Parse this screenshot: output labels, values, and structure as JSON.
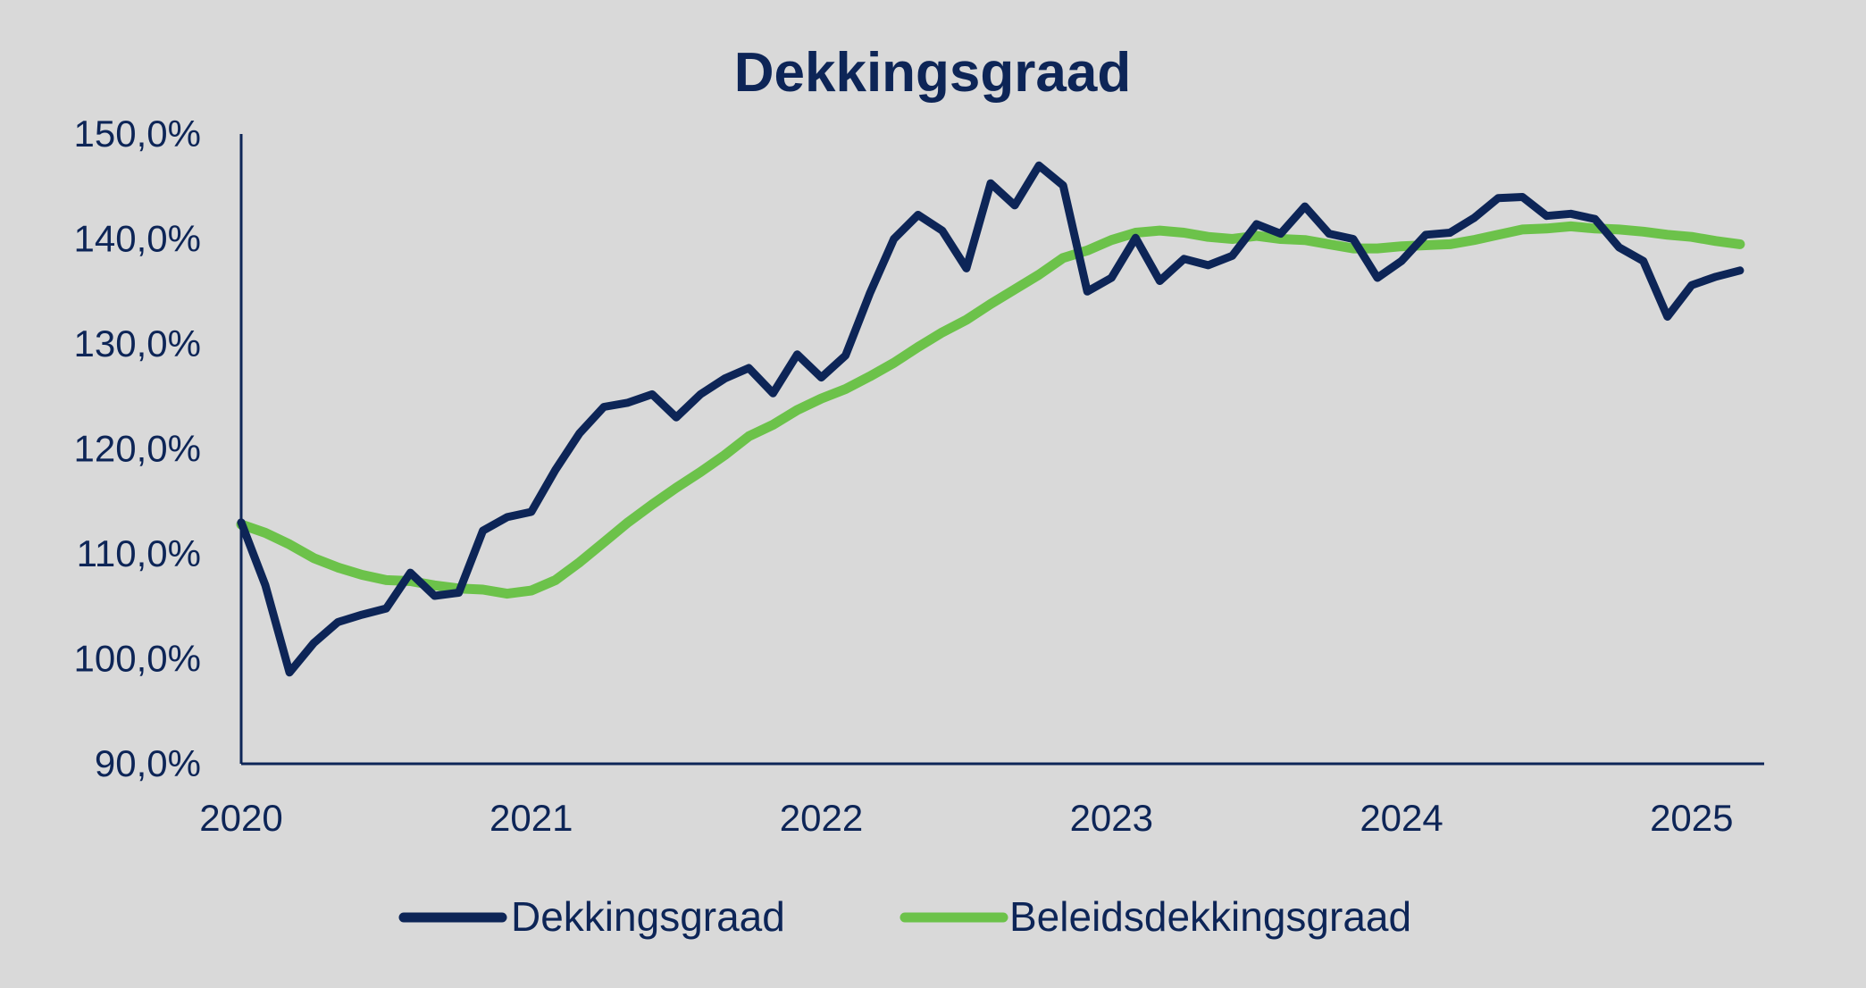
{
  "colors": {
    "background": "#d9d9d9",
    "text": "#0d2557",
    "axis": "#0d2557",
    "dekkingsgraad": "#0d2557",
    "beleidsdekkingsgraad": "#6cc24a"
  },
  "chart_data": {
    "type": "line",
    "title": "Dekkingsgraad",
    "xlabel": "",
    "ylabel": "",
    "x_axis": {
      "ticks": [
        2020,
        2021,
        2022,
        2023,
        2024,
        2025
      ],
      "tick_labels": [
        "2020",
        "2021",
        "2022",
        "2023",
        "2024",
        "2025"
      ],
      "range": [
        2020.0,
        2025.25
      ]
    },
    "y_axis": {
      "ticks": [
        90,
        100,
        110,
        120,
        130,
        140,
        150
      ],
      "tick_labels": [
        "90,0%",
        "100,0%",
        "110,0%",
        "120,0%",
        "130,0%",
        "140,0%",
        "150,0%"
      ],
      "range": [
        90,
        150
      ]
    },
    "grid": false,
    "legend_position": "bottom",
    "x_start": 2020.0,
    "x_step_months": 1,
    "series": [
      {
        "name": "Dekkingsgraad",
        "color_key": "dekkingsgraad",
        "values": [
          113.0,
          107.0,
          98.7,
          101.5,
          103.5,
          104.2,
          104.8,
          108.2,
          106.0,
          106.3,
          112.2,
          113.5,
          114.0,
          118.0,
          121.5,
          124.0,
          124.4,
          125.2,
          123.0,
          125.2,
          126.7,
          127.7,
          125.3,
          129.0,
          126.8,
          128.9,
          134.8,
          140.0,
          142.3,
          140.8,
          137.2,
          145.3,
          143.2,
          147.0,
          145.1,
          135.0,
          136.3,
          140.1,
          136.0,
          138.1,
          137.5,
          138.4,
          141.4,
          140.5,
          143.1,
          140.5,
          140.0,
          136.3,
          137.9,
          140.4,
          140.6,
          142.0,
          143.9,
          144.0,
          142.2,
          142.4,
          141.9,
          139.2,
          137.9,
          132.6,
          135.6,
          136.4,
          137.0
        ]
      },
      {
        "name": "Beleidsdekkingsgraad",
        "color_key": "beleidsdekkingsgraad",
        "values": [
          112.8,
          112.0,
          110.9,
          109.6,
          108.7,
          108.0,
          107.5,
          107.4,
          107.0,
          106.7,
          106.6,
          106.2,
          106.5,
          107.5,
          109.2,
          111.1,
          113.0,
          114.7,
          116.3,
          117.8,
          119.4,
          121.2,
          122.3,
          123.7,
          124.8,
          125.7,
          126.9,
          128.2,
          129.7,
          131.1,
          132.3,
          133.8,
          135.2,
          136.6,
          138.2,
          138.9,
          139.9,
          140.6,
          140.8,
          140.6,
          140.2,
          140.0,
          140.3,
          140.0,
          139.9,
          139.5,
          139.1,
          139.1,
          139.3,
          139.4,
          139.5,
          139.9,
          140.4,
          140.9,
          141.0,
          141.2,
          141.0,
          140.9,
          140.7,
          140.4,
          140.2,
          139.8,
          139.5
        ]
      }
    ]
  }
}
